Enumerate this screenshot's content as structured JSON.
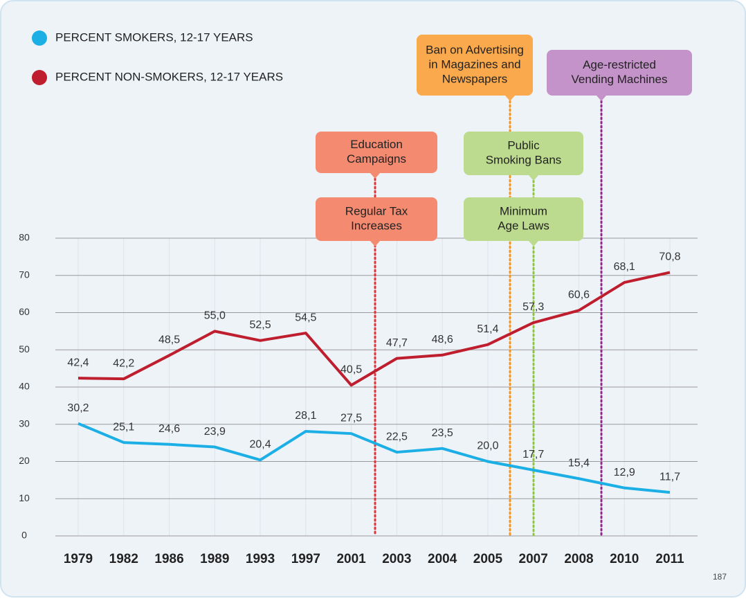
{
  "chart_data": {
    "type": "line",
    "categories": [
      "1979",
      "1982",
      "1986",
      "1989",
      "1993",
      "1997",
      "2001",
      "2003",
      "2004",
      "2005",
      "2007",
      "2008",
      "2010",
      "2011"
    ],
    "series": [
      {
        "name": "PERCENT SMOKERS, 12-17 YEARS",
        "color": "#1cafe6",
        "values": [
          30.2,
          25.1,
          24.6,
          23.9,
          20.4,
          28.1,
          27.5,
          22.5,
          23.5,
          20.0,
          17.7,
          15.4,
          12.9,
          11.7
        ],
        "value_labels": [
          "30,2",
          "25,1",
          "24,6",
          "23,9",
          "20,4",
          "28,1",
          "27,5",
          "22,5",
          "23,5",
          "20,0",
          "17,7",
          "15,4",
          "12,9",
          "11,7"
        ]
      },
      {
        "name": "PERCENT NON-SMOKERS, 12-17 YEARS",
        "color": "#be1e2d",
        "values": [
          42.4,
          42.2,
          48.5,
          55.0,
          52.5,
          54.5,
          40.5,
          47.7,
          48.6,
          51.4,
          57.3,
          60.6,
          68.1,
          70.8
        ],
        "value_labels": [
          "42,4",
          "42,2",
          "48,5",
          "55,0",
          "52,5",
          "54,5",
          "40,5",
          "47,7",
          "48,6",
          "51,4",
          "57,3",
          "60,6",
          "68,1",
          "70,8"
        ]
      }
    ],
    "ylim": [
      0,
      80
    ],
    "yticks": [
      0,
      10,
      20,
      30,
      40,
      50,
      60,
      70,
      80
    ],
    "grid": true,
    "annotations": [
      {
        "lines": [
          "Education",
          "Campaigns"
        ],
        "color": "#f48a70",
        "line_color": "#e2323a"
      },
      {
        "lines": [
          "Regular Tax",
          "Increases"
        ],
        "color": "#f48a70",
        "line_color": "#e2323a"
      },
      {
        "lines": [
          "Ban on Advertising",
          "in Magazines and",
          "Newspapers"
        ],
        "color": "#faa94c",
        "line_color": "#f7941d"
      },
      {
        "lines": [
          "Public",
          "Smoking Bans"
        ],
        "color": "#bcdb8e",
        "line_color": "#8dc63f"
      },
      {
        "lines": [
          "Minimum",
          "Age Laws"
        ],
        "color": "#bcdb8e",
        "line_color": "#8dc63f"
      },
      {
        "lines": [
          "Age-restricted",
          "Vending Machines"
        ],
        "color": "#c493c9",
        "line_color": "#93278f"
      }
    ]
  },
  "page_number": "187"
}
